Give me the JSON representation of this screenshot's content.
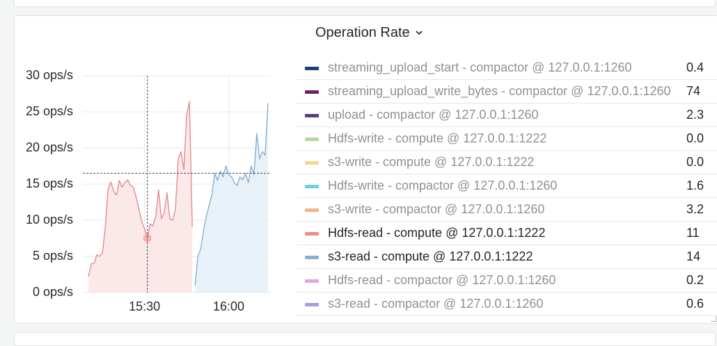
{
  "panel": {
    "title": "Operation Rate",
    "title_icon": "chevron-down-icon"
  },
  "chart_data": {
    "type": "area",
    "title": "Operation Rate",
    "y_ticks": [
      "30 ops/s",
      "25 ops/s",
      "20 ops/s",
      "15 ops/s",
      "10 ops/s",
      "5 ops/s",
      "0 ops/s"
    ],
    "x_ticks": [
      "15:30",
      "16:00"
    ],
    "ylim": [
      0,
      30
    ],
    "xlim": [
      "15:08",
      "16:15"
    ],
    "grid": true,
    "crosshair": {
      "x": "15:31",
      "y": 16.5
    },
    "series": [
      {
        "name": "Hdfs-read - compute @ 127.0.0.1:1222",
        "color": "#e88a8a",
        "fill": "#fbe9e9",
        "x": [
          "15:10",
          "15:11",
          "15:12",
          "15:13",
          "15:14",
          "15:15",
          "15:16",
          "15:17",
          "15:18",
          "15:19",
          "15:20",
          "15:21",
          "15:22",
          "15:23",
          "15:24",
          "15:25",
          "15:26",
          "15:27",
          "15:28",
          "15:29",
          "15:30",
          "15:31",
          "15:32",
          "15:33",
          "15:34",
          "15:35",
          "15:36",
          "15:37",
          "15:38",
          "15:39",
          "15:40",
          "15:41",
          "15:42",
          "15:43",
          "15:44",
          "15:45",
          "15:46",
          "15:47"
        ],
        "values": [
          2.2,
          4,
          4,
          5.2,
          5,
          5.5,
          9,
          14.3,
          15.3,
          14,
          13.5,
          15.5,
          14.6,
          15.2,
          15.6,
          14.8,
          14.6,
          13.2,
          11.5,
          9.8,
          8.8,
          7.5,
          9.5,
          9.2,
          10.5,
          14.2,
          10.2,
          11,
          13.8,
          10.2,
          10,
          11.5,
          18.5,
          19.5,
          17,
          24.5,
          26.4,
          9.1
        ]
      },
      {
        "name": "s3-read - compute @ 127.0.0.1:1222",
        "color": "#86afd6",
        "fill": "#e9f1f8",
        "x": [
          "15:48",
          "15:49",
          "15:50",
          "15:51",
          "15:52",
          "15:53",
          "15:54",
          "15:55",
          "15:56",
          "15:57",
          "15:58",
          "15:59",
          "16:00",
          "16:01",
          "16:02",
          "16:03",
          "16:04",
          "16:05",
          "16:06",
          "16:07",
          "16:08",
          "16:09",
          "16:10",
          "16:11",
          "16:12",
          "16:13",
          "16:14"
        ],
        "values": [
          1,
          5,
          6,
          8.5,
          10.5,
          12,
          13.5,
          16.5,
          15.5,
          16.8,
          16,
          17.5,
          16.3,
          16,
          15.2,
          14.8,
          16,
          15.6,
          16.5,
          15.2,
          17.5,
          16.3,
          22,
          18.5,
          19.5,
          19,
          26.2
        ]
      }
    ]
  },
  "legend": {
    "items": [
      {
        "name": "streaming_upload_start - compactor @ 127.0.0.1:1260",
        "color": "#1f3f77",
        "value": "0.4",
        "active": false
      },
      {
        "name": "streaming_upload_write_bytes - compactor @ 127.0.0.1:1260",
        "color": "#6c1f63",
        "value": "74",
        "active": false
      },
      {
        "name": "upload - compactor @ 127.0.0.1:1260",
        "color": "#5a3f7c",
        "value": "2.3",
        "active": false
      },
      {
        "name": "Hdfs-write - compute @ 127.0.0.1:1222",
        "color": "#b3d7a0",
        "value": "0.0",
        "active": false
      },
      {
        "name": "s3-write - compute @ 127.0.0.1:1222",
        "color": "#f5d78a",
        "value": "0.0",
        "active": false
      },
      {
        "name": "Hdfs-write - compactor @ 127.0.0.1:1260",
        "color": "#6fd3df",
        "value": "1.6",
        "active": false
      },
      {
        "name": "s3-write - compactor @ 127.0.0.1:1260",
        "color": "#f1b48a",
        "value": "3.2",
        "active": false
      },
      {
        "name": "Hdfs-read - compute @ 127.0.0.1:1222",
        "color": "#ea8d8d",
        "value": "11",
        "active": true
      },
      {
        "name": "s3-read - compute @ 127.0.0.1:1222",
        "color": "#86afd6",
        "value": "14",
        "active": true
      },
      {
        "name": "Hdfs-read - compactor @ 127.0.0.1:1260",
        "color": "#e6a3e1",
        "value": "0.2",
        "active": false
      },
      {
        "name": "s3-read - compactor @ 127.0.0.1:1260",
        "color": "#a79ddb",
        "value": "0.6",
        "active": false
      }
    ]
  }
}
